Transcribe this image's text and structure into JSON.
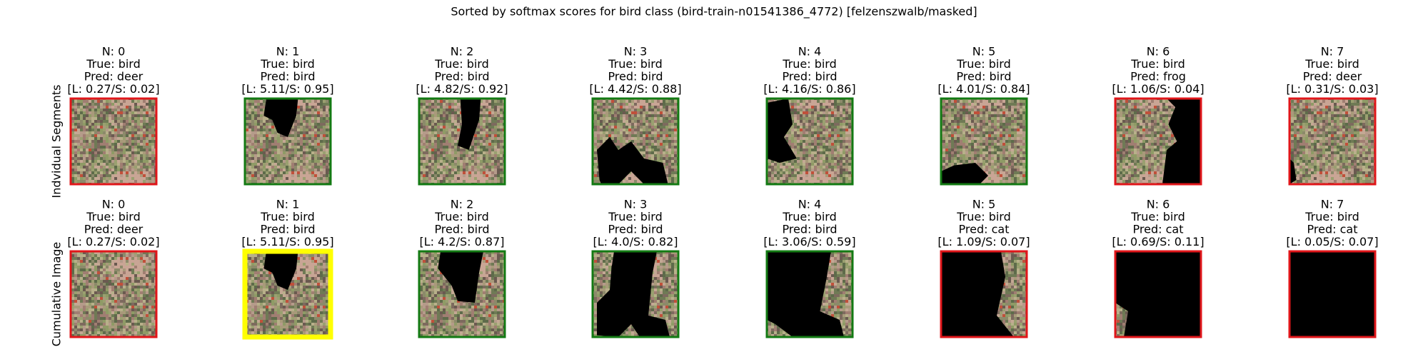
{
  "title": "Sorted by softmax scores for bird class (bird-train-n01541386_4772) [felzenszwalb/masked]",
  "rows": [
    {
      "label": "Indvidual Segments",
      "panels": [
        {
          "lines": [
            "N: 0",
            "True: bird",
            "Pred: deer",
            "[L: 0.27/S: 0.02]"
          ],
          "border": "red"
        },
        {
          "lines": [
            "N: 1",
            "True: bird",
            "Pred: bird",
            "[L: 5.11/S: 0.95]"
          ],
          "border": "green"
        },
        {
          "lines": [
            "N: 2",
            "True: bird",
            "Pred: bird",
            "[L: 4.82/S: 0.92]"
          ],
          "border": "green"
        },
        {
          "lines": [
            "N: 3",
            "True: bird",
            "Pred: bird",
            "[L: 4.42/S: 0.88]"
          ],
          "border": "green"
        },
        {
          "lines": [
            "N: 4",
            "True: bird",
            "Pred: bird",
            "[L: 4.16/S: 0.86]"
          ],
          "border": "green"
        },
        {
          "lines": [
            "N: 5",
            "True: bird",
            "Pred: bird",
            "[L: 4.01/S: 0.84]"
          ],
          "border": "green"
        },
        {
          "lines": [
            "N: 6",
            "True: bird",
            "Pred: frog",
            "[L: 1.06/S: 0.04]"
          ],
          "border": "red"
        },
        {
          "lines": [
            "N: 7",
            "True: bird",
            "Pred: deer",
            "[L: 0.31/S: 0.03]"
          ],
          "border": "red"
        }
      ]
    },
    {
      "label": "Cumulative Image",
      "panels": [
        {
          "lines": [
            "N: 0",
            "True: bird",
            "Pred: deer",
            "[L: 0.27/S: 0.02]"
          ],
          "border": "red"
        },
        {
          "lines": [
            "N: 1",
            "True: bird",
            "Pred: bird",
            "[L: 5.11/S: 0.95]"
          ],
          "border": "yellow"
        },
        {
          "lines": [
            "N: 2",
            "True: bird",
            "Pred: bird",
            "[L: 4.2/S: 0.87]"
          ],
          "border": "green"
        },
        {
          "lines": [
            "N: 3",
            "True: bird",
            "Pred: bird",
            "[L: 4.0/S: 0.82]"
          ],
          "border": "green"
        },
        {
          "lines": [
            "N: 4",
            "True: bird",
            "Pred: bird",
            "[L: 3.06/S: 0.59]"
          ],
          "border": "green"
        },
        {
          "lines": [
            "N: 5",
            "True: bird",
            "Pred: cat",
            "[L: 1.09/S: 0.07]"
          ],
          "border": "red"
        },
        {
          "lines": [
            "N: 6",
            "True: bird",
            "Pred: cat",
            "[L: 0.69/S: 0.11]"
          ],
          "border": "red"
        },
        {
          "lines": [
            "N: 7",
            "True: bird",
            "Pred: cat",
            "[L: 0.05/S: 0.07]"
          ],
          "border": "red"
        }
      ]
    }
  ]
}
